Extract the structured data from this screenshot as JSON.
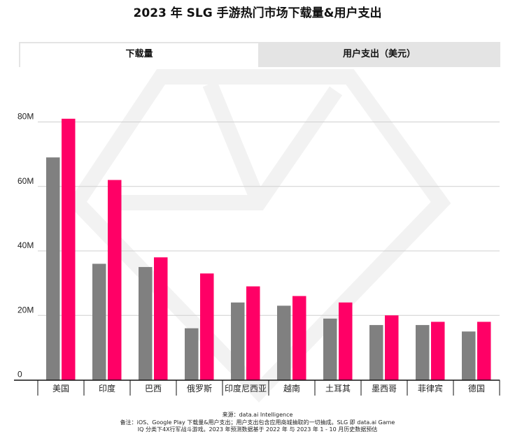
{
  "title": "2023 年 SLG 手游热门市场下载量&用户支出",
  "tabs": [
    {
      "label": "下载量",
      "active": true
    },
    {
      "label": "用户支出（美元）",
      "active": false
    }
  ],
  "chart_data": {
    "type": "bar",
    "title": "2023 年 SLG 手游热门市场下载量&用户支出",
    "categories": [
      "美国",
      "印度",
      "巴西",
      "俄罗斯",
      "印度尼西亚",
      "越南",
      "土耳其",
      "墨西哥",
      "菲律宾",
      "德国"
    ],
    "series": [
      {
        "color": "#808080",
        "values": [
          69,
          36,
          35,
          16,
          24,
          23,
          19,
          17,
          17,
          15
        ]
      },
      {
        "color": "#ff0066",
        "values": [
          81,
          62,
          38,
          33,
          29,
          26,
          24,
          20,
          18,
          18
        ]
      }
    ],
    "unit": "M",
    "ylim": [
      0,
      80
    ],
    "yticks": [
      0,
      20,
      40,
      60,
      80
    ],
    "ytick_labels": [
      "0",
      "20M",
      "40M",
      "60M",
      "80M"
    ],
    "grid": true,
    "xlabel": "",
    "ylabel": ""
  },
  "footer": {
    "source": "来源：data.ai Intelligence",
    "note_line1": "备注：iOS、Google Play 下载量&用户支出；用户支出包含应用商城抽取的一切抽成。SLG 即 data.ai Game",
    "note_line2": "IQ 分类下4X行军战斗游戏。2023 年预测数据基于 2022 年 与 2023 年 1 - 10 月历史数据预估"
  }
}
